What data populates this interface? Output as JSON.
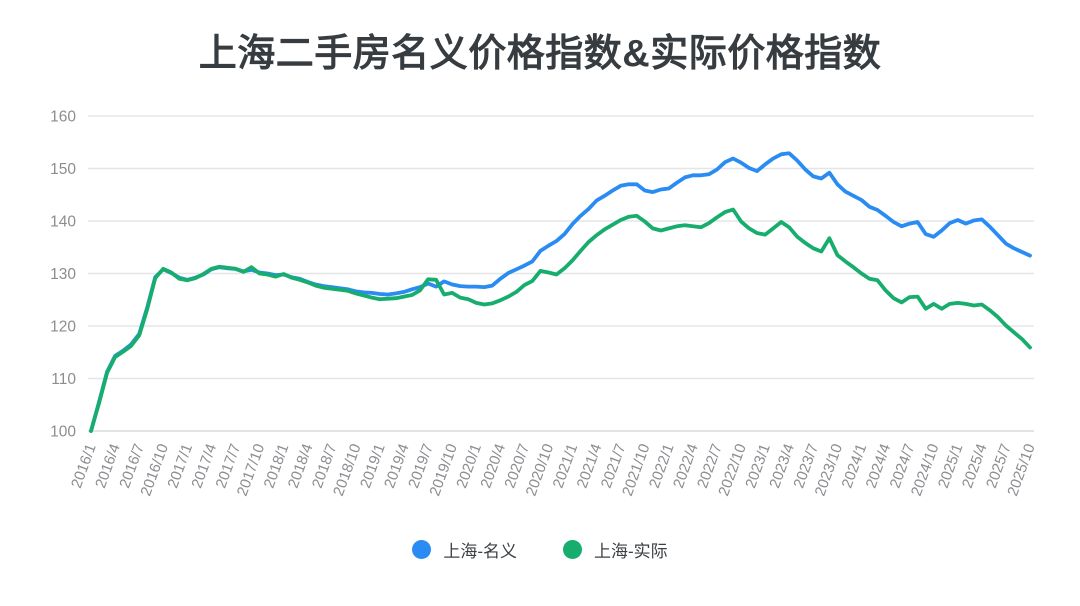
{
  "title": "上海二手房名义价格指数&实际价格指数",
  "colors": {
    "background": "#ffffff",
    "title_text": "#373c41",
    "gridline": "#e4e5e7",
    "axis_line": "#d9dadc",
    "tick_label": "#8b8d91",
    "nominal_blue": "#2a8cf2",
    "real_green": "#17ad6d",
    "legend_text": "#3d4145"
  },
  "legend": {
    "items": [
      {
        "label": "上海-名义",
        "color": "#2a8cf2"
      },
      {
        "label": "上海-实际",
        "color": "#17ad6d"
      }
    ]
  },
  "chart_data": {
    "type": "line",
    "title": "上海二手房名义价格指数&实际价格指数",
    "xlabel": "",
    "ylabel": "",
    "ylim": [
      100,
      160
    ],
    "y_ticks": [
      100,
      110,
      120,
      130,
      140,
      150,
      160
    ],
    "grid": true,
    "legend_position": "bottom",
    "x_tick_every_n_months": 3,
    "x_tick_labels": [
      "2016/1",
      "2016/4",
      "2016/7",
      "2016/10",
      "2017/1",
      "2017/4",
      "2017/7",
      "2017/10",
      "2018/1",
      "2018/4",
      "2018/7",
      "2018/10",
      "2019/1",
      "2019/4",
      "2019/7",
      "2019/10",
      "2020/1",
      "2020/4",
      "2020/7",
      "2020/10",
      "2021/1",
      "2021/4",
      "2021/7",
      "2021/10",
      "2022/1",
      "2022/4",
      "2022/7",
      "2022/10",
      "2023/1",
      "2023/4",
      "2023/7",
      "2023/10",
      "2024/1",
      "2024/4",
      "2024/7",
      "2024/10",
      "2025/1",
      "2025/4",
      "2025/7",
      "2025/10"
    ],
    "x": [
      "2016/1",
      "2016/2",
      "2016/3",
      "2016/4",
      "2016/5",
      "2016/6",
      "2016/7",
      "2016/8",
      "2016/9",
      "2016/10",
      "2016/11",
      "2016/12",
      "2017/1",
      "2017/2",
      "2017/3",
      "2017/4",
      "2017/5",
      "2017/6",
      "2017/7",
      "2017/8",
      "2017/9",
      "2017/10",
      "2017/11",
      "2017/12",
      "2018/1",
      "2018/2",
      "2018/3",
      "2018/4",
      "2018/5",
      "2018/6",
      "2018/7",
      "2018/8",
      "2018/9",
      "2018/10",
      "2018/11",
      "2018/12",
      "2019/1",
      "2019/2",
      "2019/3",
      "2019/4",
      "2019/5",
      "2019/6",
      "2019/7",
      "2019/8",
      "2019/9",
      "2019/10",
      "2019/11",
      "2019/12",
      "2020/1",
      "2020/2",
      "2020/3",
      "2020/4",
      "2020/5",
      "2020/6",
      "2020/7",
      "2020/8",
      "2020/9",
      "2020/10",
      "2020/11",
      "2020/12",
      "2021/1",
      "2021/2",
      "2021/3",
      "2021/4",
      "2021/5",
      "2021/6",
      "2021/7",
      "2021/8",
      "2021/9",
      "2021/10",
      "2021/11",
      "2021/12",
      "2022/1",
      "2022/2",
      "2022/3",
      "2022/4",
      "2022/5",
      "2022/6",
      "2022/7",
      "2022/8",
      "2022/9",
      "2022/10",
      "2022/11",
      "2022/12",
      "2023/1",
      "2023/2",
      "2023/3",
      "2023/4",
      "2023/5",
      "2023/6",
      "2023/7",
      "2023/8",
      "2023/9",
      "2023/10",
      "2023/11",
      "2023/12",
      "2024/1",
      "2024/2",
      "2024/3",
      "2024/4",
      "2024/5",
      "2024/6",
      "2024/7",
      "2024/8",
      "2024/9",
      "2024/10",
      "2024/11",
      "2024/12",
      "2025/1",
      "2025/2",
      "2025/3",
      "2025/4",
      "2025/5",
      "2025/6",
      "2025/7",
      "2025/8",
      "2025/9",
      "2025/10"
    ],
    "series": [
      {
        "name": "上海-名义",
        "color": "#2a8cf2",
        "values": [
          100.0,
          105.5,
          111.3,
          114.3,
          115.3,
          116.5,
          118.5,
          123.5,
          129.3,
          130.8,
          130.1,
          129.2,
          128.8,
          129.2,
          129.8,
          130.8,
          131.2,
          131.0,
          130.9,
          130.4,
          130.7,
          130.2,
          130.0,
          129.7,
          129.8,
          129.3,
          129.0,
          128.4,
          127.9,
          127.6,
          127.4,
          127.2,
          127.0,
          126.6,
          126.4,
          126.3,
          126.1,
          126.0,
          126.2,
          126.5,
          127.0,
          127.4,
          128.1,
          127.5,
          128.5,
          127.9,
          127.6,
          127.5,
          127.5,
          127.4,
          127.7,
          129.0,
          130.1,
          130.8,
          131.5,
          132.3,
          134.3,
          135.3,
          136.2,
          137.5,
          139.4,
          141.0,
          142.3,
          143.9,
          144.8,
          145.8,
          146.7,
          147.0,
          147.0,
          145.8,
          145.5,
          146.0,
          146.2,
          147.3,
          148.3,
          148.7,
          148.7,
          148.9,
          149.8,
          151.2,
          151.9,
          151.1,
          150.1,
          149.5,
          150.8,
          151.9,
          152.7,
          152.9,
          151.5,
          149.8,
          148.5,
          148.1,
          149.2,
          147.0,
          145.6,
          144.8,
          144.0,
          142.7,
          142.1,
          141.0,
          139.8,
          139.0,
          139.5,
          139.8,
          137.5,
          137.0,
          138.2,
          139.6,
          140.2,
          139.5,
          140.1,
          140.3,
          138.9,
          137.3,
          135.7,
          134.8,
          134.1,
          133.4
        ]
      },
      {
        "name": "上海-实际",
        "color": "#17ad6d",
        "values": [
          100.0,
          105.3,
          111.1,
          114.1,
          115.1,
          116.2,
          118.2,
          123.2,
          129.1,
          130.9,
          130.2,
          129.0,
          128.7,
          129.1,
          129.9,
          130.9,
          131.3,
          131.1,
          130.9,
          130.3,
          131.2,
          130.0,
          129.8,
          129.4,
          129.9,
          129.2,
          128.8,
          128.3,
          127.7,
          127.3,
          127.1,
          126.9,
          126.7,
          126.2,
          125.8,
          125.4,
          125.1,
          125.2,
          125.3,
          125.6,
          125.9,
          126.8,
          128.9,
          128.8,
          126.0,
          126.3,
          125.4,
          125.1,
          124.4,
          124.1,
          124.3,
          124.9,
          125.6,
          126.5,
          127.8,
          128.6,
          130.5,
          130.2,
          129.8,
          131.0,
          132.5,
          134.3,
          136.0,
          137.3,
          138.4,
          139.3,
          140.2,
          140.8,
          141.0,
          139.9,
          138.6,
          138.2,
          138.6,
          139.0,
          139.2,
          139.0,
          138.8,
          139.6,
          140.7,
          141.7,
          142.2,
          139.9,
          138.6,
          137.7,
          137.4,
          138.6,
          139.8,
          138.8,
          137.0,
          135.8,
          134.8,
          134.2,
          136.7,
          133.5,
          132.3,
          131.2,
          130.0,
          129.0,
          128.7,
          126.8,
          125.3,
          124.5,
          125.5,
          125.6,
          123.3,
          124.2,
          123.3,
          124.2,
          124.4,
          124.2,
          123.9,
          124.1,
          123.0,
          121.7,
          120.1,
          118.8,
          117.5,
          115.9
        ]
      }
    ]
  }
}
